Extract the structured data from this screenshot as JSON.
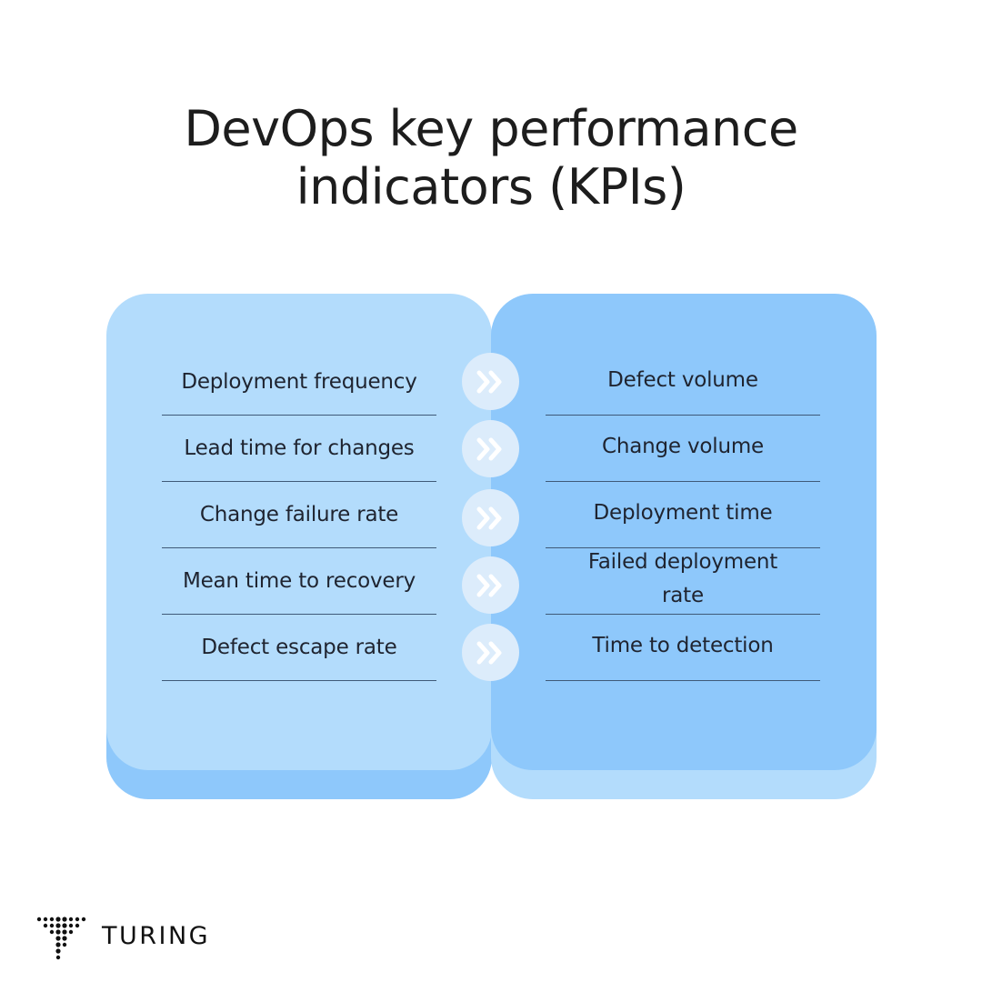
{
  "title": {
    "line1": "DevOps key performance",
    "line2": "indicators (KPIs)"
  },
  "left_items": [
    "Deployment frequency",
    "Lead time for changes",
    "Change failure rate",
    "Mean time to recovery",
    "Defect escape rate"
  ],
  "right_items": [
    "Defect volume",
    "Change volume",
    "Deployment time",
    "Failed deployment rate",
    "Time to detection"
  ],
  "arrow_icon": "double-chevron-right-icon",
  "brand": {
    "name": "TURING"
  },
  "colors": {
    "left_panel": "#b3dcfc",
    "right_panel": "#8ec8fb",
    "arrow_circle": "#dcecfb",
    "divider": "#3f5a78"
  }
}
